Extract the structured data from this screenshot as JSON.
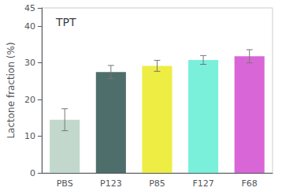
{
  "chart_data": {
    "type": "bar",
    "title": "TPT",
    "categories": [
      "PBS",
      "P123",
      "P85",
      "F127",
      "F68"
    ],
    "values": [
      14.5,
      27.5,
      29.2,
      30.8,
      31.8
    ],
    "errors": [
      3.0,
      1.8,
      1.5,
      1.2,
      1.8
    ],
    "colors": [
      "#c2d8cc",
      "#4e6e6b",
      "#eded44",
      "#7af0db",
      "#d966d6"
    ],
    "ylabel": "Lactone fraction (%)",
    "ylim": [
      0,
      45
    ],
    "yticks": [
      0,
      10,
      20,
      30,
      40
    ],
    "grid": false
  }
}
